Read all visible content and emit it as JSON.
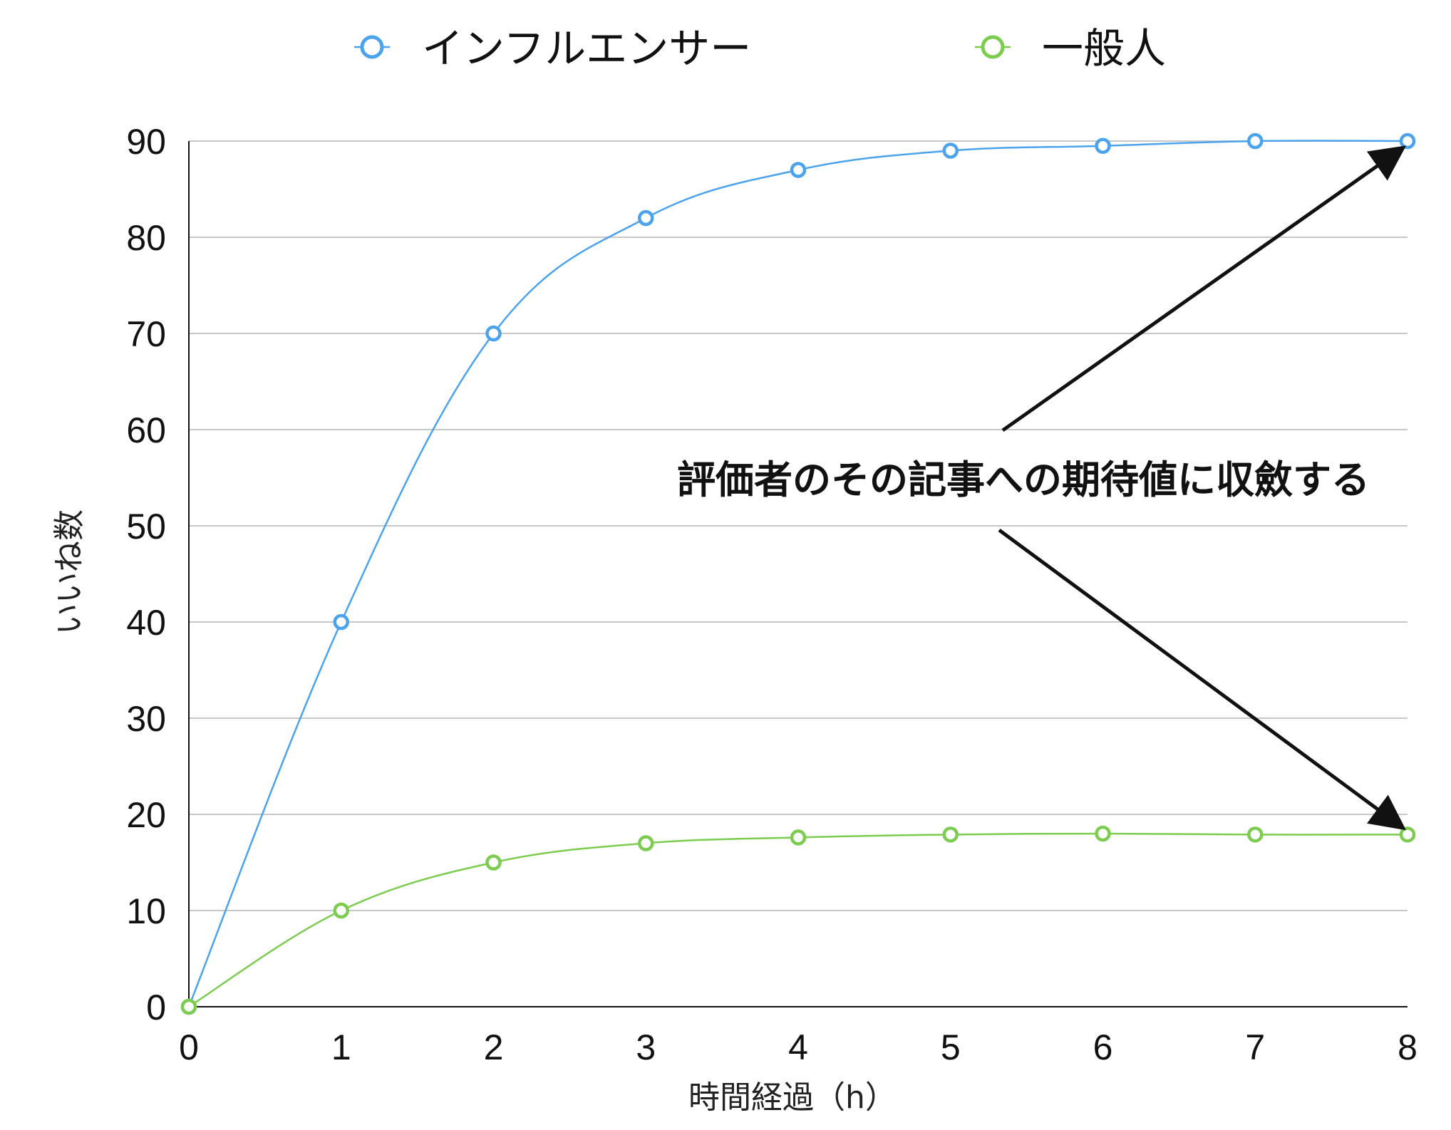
{
  "chart_data": {
    "type": "line",
    "x": [
      0,
      1,
      2,
      3,
      4,
      5,
      6,
      7,
      8
    ],
    "series": [
      {
        "name": "インフルエンサー",
        "color": "#4aa3ec",
        "values": [
          0,
          40,
          70,
          82,
          87,
          89,
          89.5,
          90,
          90
        ]
      },
      {
        "name": "一般人",
        "color": "#7ccc4f",
        "values": [
          0,
          10,
          15,
          17,
          17.6,
          17.9,
          18,
          17.9,
          17.9
        ]
      }
    ],
    "xlabel": "時間経過（h）",
    "ylabel": "いいね数",
    "xlim": [
      0,
      8
    ],
    "ylim": [
      0,
      90
    ],
    "xticks": [
      0,
      1,
      2,
      3,
      4,
      5,
      6,
      7,
      8
    ],
    "yticks": [
      0,
      10,
      20,
      30,
      40,
      50,
      60,
      70,
      80,
      90
    ],
    "grid": true,
    "legend_position": "top-center",
    "annotation": {
      "text": "評価者のその記事への期待値に収斂する",
      "arrow_targets": [
        {
          "x": 8,
          "y": 90
        },
        {
          "x": 8,
          "y": 17.9
        }
      ]
    }
  }
}
